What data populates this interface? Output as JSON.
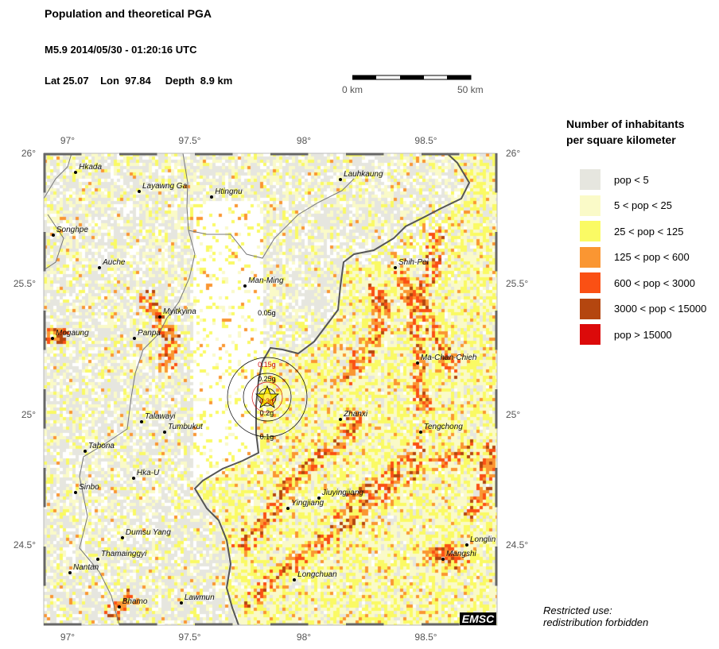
{
  "header": {
    "title": "Population and theoretical PGA",
    "event": "M5.9  2014/05/30 - 01:20:16 UTC",
    "location": "Lat 25.07    Lon  97.84     Depth  8.9 km"
  },
  "scale_bar": {
    "start_label": "0 km",
    "end_label": "50 km"
  },
  "map": {
    "lon_range": [
      96.896,
      98.815
    ],
    "lat_range": [
      24.193,
      26.0
    ],
    "lon_ticks": [
      {
        "v": 97,
        "label": "97°"
      },
      {
        "v": 97.5,
        "label": "97.5°"
      },
      {
        "v": 98,
        "label": "98°"
      },
      {
        "v": 98.5,
        "label": "98.5°"
      }
    ],
    "lat_ticks": [
      {
        "v": 26,
        "label": "26°"
      },
      {
        "v": 25.5,
        "label": "25.5°"
      },
      {
        "v": 25,
        "label": "25°"
      },
      {
        "v": 24.5,
        "label": "24.5°"
      }
    ],
    "epicenter": {
      "lon": 97.84,
      "lat": 25.07,
      "color": "#f5e600"
    },
    "pga_labels": [
      {
        "label": "0.05g",
        "lon": 97.84,
        "lat": 25.385,
        "color": "#000000"
      },
      {
        "label": "0.15g",
        "lon": 97.84,
        "lat": 25.188,
        "color": "#d01010"
      },
      {
        "label": "0.25g",
        "lon": 97.84,
        "lat": 25.133,
        "color": "#000000"
      },
      {
        "label": "0.3g",
        "lon": 97.84,
        "lat": 25.048,
        "color": "#d01010"
      },
      {
        "label": "0.2g",
        "lon": 97.84,
        "lat": 25.003,
        "color": "#000000"
      },
      {
        "label": "0.1g",
        "lon": 97.84,
        "lat": 24.912,
        "color": "#000000"
      }
    ],
    "cities": [
      {
        "name": "Hkada",
        "lon": 97.031,
        "lat": 25.927
      },
      {
        "name": "Layawng Ga",
        "lon": 97.3,
        "lat": 25.854
      },
      {
        "name": "Htingnu",
        "lon": 97.607,
        "lat": 25.833
      },
      {
        "name": "Lauhkaung",
        "lon": 98.152,
        "lat": 25.9
      },
      {
        "name": "Songhpe",
        "lon": 96.936,
        "lat": 25.687
      },
      {
        "name": "Auche",
        "lon": 97.132,
        "lat": 25.562
      },
      {
        "name": "Shih-Pei",
        "lon": 98.384,
        "lat": 25.562
      },
      {
        "name": "Man-Ming",
        "lon": 97.748,
        "lat": 25.492
      },
      {
        "name": "Myitkyina",
        "lon": 97.388,
        "lat": 25.374
      },
      {
        "name": "Mogaung",
        "lon": 96.933,
        "lat": 25.292
      },
      {
        "name": "Panpa",
        "lon": 97.28,
        "lat": 25.292
      },
      {
        "name": "Ma-Chan-Chieh",
        "lon": 98.478,
        "lat": 25.198
      },
      {
        "name": "Talawayi",
        "lon": 97.31,
        "lat": 24.973
      },
      {
        "name": "Tumbukut",
        "lon": 97.408,
        "lat": 24.933
      },
      {
        "name": "Zhanxi",
        "lon": 98.152,
        "lat": 24.982
      },
      {
        "name": "Tengchong",
        "lon": 98.491,
        "lat": 24.933
      },
      {
        "name": "Tahona",
        "lon": 97.071,
        "lat": 24.86
      },
      {
        "name": "Hka-U",
        "lon": 97.276,
        "lat": 24.757
      },
      {
        "name": "Sinbo",
        "lon": 97.031,
        "lat": 24.702
      },
      {
        "name": "Yingjiang",
        "lon": 97.93,
        "lat": 24.641
      },
      {
        "name": "Jiuyingjiang",
        "lon": 98.06,
        "lat": 24.68
      },
      {
        "name": "Dumsu Yang",
        "lon": 97.229,
        "lat": 24.528
      },
      {
        "name": "Longlin",
        "lon": 98.687,
        "lat": 24.501
      },
      {
        "name": "Thamainggyi",
        "lon": 97.125,
        "lat": 24.447
      },
      {
        "name": "Mangshi",
        "lon": 98.586,
        "lat": 24.447
      },
      {
        "name": "Nantan",
        "lon": 97.007,
        "lat": 24.395
      },
      {
        "name": "Longchuan",
        "lon": 97.957,
        "lat": 24.365
      },
      {
        "name": "Bhamo",
        "lon": 97.215,
        "lat": 24.264
      },
      {
        "name": "Lawmun",
        "lon": 97.478,
        "lat": 24.277
      }
    ],
    "logo": "EMSC"
  },
  "legend": {
    "title_line1": "Number of inhabitants",
    "title_line2": "per square kilometer",
    "items": [
      {
        "label": "pop < 5",
        "color": "#e6e6df"
      },
      {
        "label": "5 < pop < 25",
        "color": "#fafac8"
      },
      {
        "label": "25 < pop < 125",
        "color": "#fafa64"
      },
      {
        "label": "125 < pop < 600",
        "color": "#fa9632"
      },
      {
        "label": "600 < pop < 3000",
        "color": "#fa5014"
      },
      {
        "label": "3000 < pop < 15000",
        "color": "#b4460f"
      },
      {
        "label": "pop > 15000",
        "color": "#dc0a0a"
      }
    ]
  },
  "note": {
    "line1": "Restricted use:",
    "line2": "redistribution forbidden"
  }
}
